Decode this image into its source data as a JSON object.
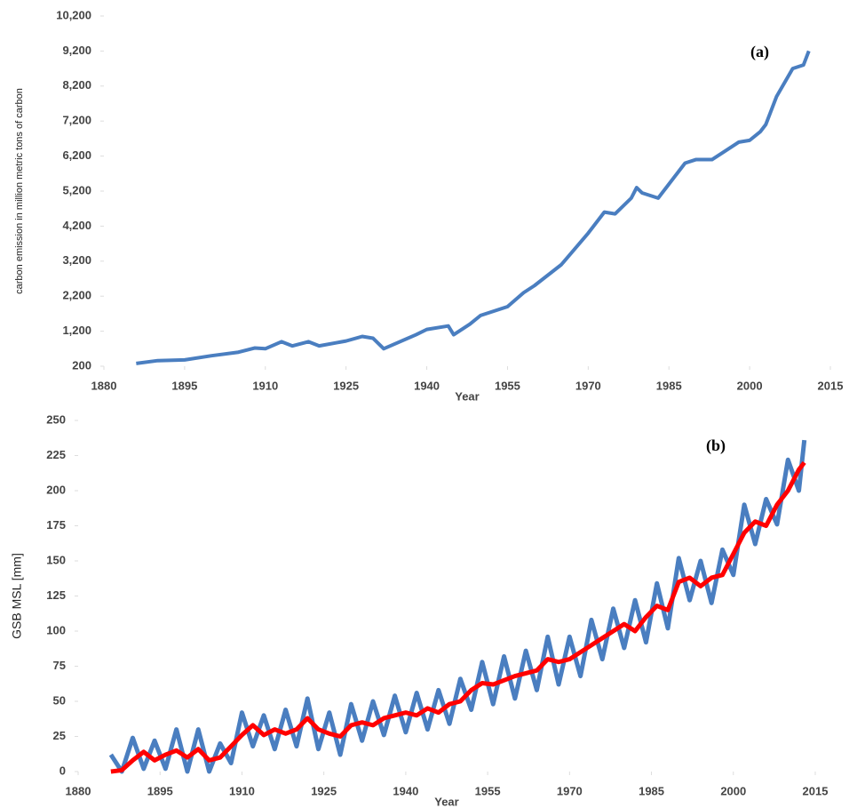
{
  "chart_data": [
    {
      "type": "line",
      "annotation": "(a)",
      "ylabel": "carbon emission in million metric tons of carbon",
      "xlabel": "Year",
      "xlim": [
        1880,
        2015
      ],
      "xticks": [
        1880,
        1895,
        1910,
        1925,
        1940,
        1955,
        1970,
        1985,
        2000,
        2015
      ],
      "ylim": [
        200,
        10200
      ],
      "yticks": [
        200,
        {
          "value": 1200,
          "label": "1,200"
        },
        {
          "value": 2200,
          "label": "2,200"
        },
        {
          "value": 3200,
          "label": "3,200"
        },
        {
          "value": 4200,
          "label": "4,200"
        },
        {
          "value": 5200,
          "label": "5,200"
        },
        {
          "value": 6200,
          "label": "6,200"
        },
        {
          "value": 7200,
          "label": "7,200"
        },
        {
          "value": 8200,
          "label": "8,200"
        },
        {
          "value": 9200,
          "label": "9,200"
        },
        {
          "value": 10200,
          "label": "10,200"
        }
      ],
      "x": [
        1886,
        1890,
        1895,
        1900,
        1905,
        1908,
        1910,
        1913,
        1915,
        1918,
        1920,
        1925,
        1928,
        1930,
        1932,
        1935,
        1938,
        1940,
        1944,
        1945,
        1948,
        1950,
        1955,
        1958,
        1960,
        1965,
        1970,
        1973,
        1975,
        1978,
        1979,
        1980,
        1983,
        1985,
        1988,
        1990,
        1993,
        1995,
        1998,
        2000,
        2002,
        2003,
        2005,
        2008,
        2010,
        2011
      ],
      "series": [
        {
          "color": "#4a7ec0",
          "values": [
            280,
            360,
            380,
            500,
            600,
            720,
            700,
            900,
            780,
            900,
            780,
            920,
            1050,
            1000,
            700,
            900,
            1100,
            1250,
            1350,
            1100,
            1400,
            1650,
            1900,
            2300,
            2500,
            3100,
            4000,
            4600,
            4550,
            5000,
            5300,
            5150,
            5000,
            5400,
            6000,
            6100,
            6100,
            6300,
            6600,
            6650,
            6900,
            7100,
            7900,
            8700,
            8800,
            9200
          ]
        }
      ]
    },
    {
      "type": "line",
      "annotation": "(b)",
      "ylabel": "GSB MSL [mm]",
      "xlabel": "Year",
      "xlim": [
        1880,
        2015
      ],
      "xticks": [
        1880,
        1895,
        1910,
        1925,
        1940,
        1955,
        1970,
        1985,
        2000,
        2015
      ],
      "ylim": [
        0,
        250
      ],
      "yticks": [
        0,
        25,
        50,
        75,
        100,
        125,
        150,
        175,
        200,
        225,
        250
      ],
      "x": [
        1886,
        1888,
        1890,
        1892,
        1894,
        1896,
        1898,
        1900,
        1902,
        1904,
        1906,
        1908,
        1910,
        1912,
        1914,
        1916,
        1918,
        1920,
        1922,
        1924,
        1926,
        1928,
        1930,
        1932,
        1934,
        1936,
        1938,
        1940,
        1942,
        1944,
        1946,
        1948,
        1950,
        1952,
        1954,
        1956,
        1958,
        1960,
        1962,
        1964,
        1966,
        1968,
        1970,
        1972,
        1974,
        1976,
        1978,
        1980,
        1982,
        1984,
        1986,
        1988,
        1990,
        1992,
        1994,
        1996,
        1998,
        2000,
        2002,
        2004,
        2006,
        2008,
        2010,
        2012,
        2013
      ],
      "series": [
        {
          "color": "#4a7ec0",
          "width": 5,
          "values": [
            12,
            0,
            24,
            2,
            22,
            2,
            30,
            0,
            30,
            0,
            20,
            6,
            42,
            18,
            40,
            16,
            44,
            18,
            52,
            16,
            42,
            12,
            48,
            22,
            50,
            26,
            54,
            28,
            56,
            30,
            58,
            34,
            66,
            44,
            78,
            48,
            82,
            52,
            86,
            58,
            96,
            62,
            96,
            68,
            108,
            80,
            116,
            88,
            122,
            92,
            134,
            102,
            152,
            122,
            150,
            120,
            158,
            140,
            190,
            162,
            194,
            176,
            222,
            200,
            236
          ]
        },
        {
          "color": "#ff0000",
          "width": 5,
          "values": [
            0,
            1,
            8,
            14,
            8,
            12,
            15,
            10,
            16,
            8,
            10,
            18,
            26,
            33,
            26,
            30,
            27,
            30,
            38,
            30,
            27,
            25,
            33,
            35,
            33,
            38,
            40,
            42,
            40,
            45,
            42,
            48,
            50,
            58,
            63,
            62,
            65,
            68,
            70,
            72,
            80,
            78,
            80,
            85,
            90,
            95,
            100,
            105,
            100,
            110,
            118,
            115,
            135,
            138,
            132,
            138,
            140,
            155,
            170,
            178,
            175,
            190,
            200,
            215,
            220
          ]
        }
      ]
    }
  ]
}
